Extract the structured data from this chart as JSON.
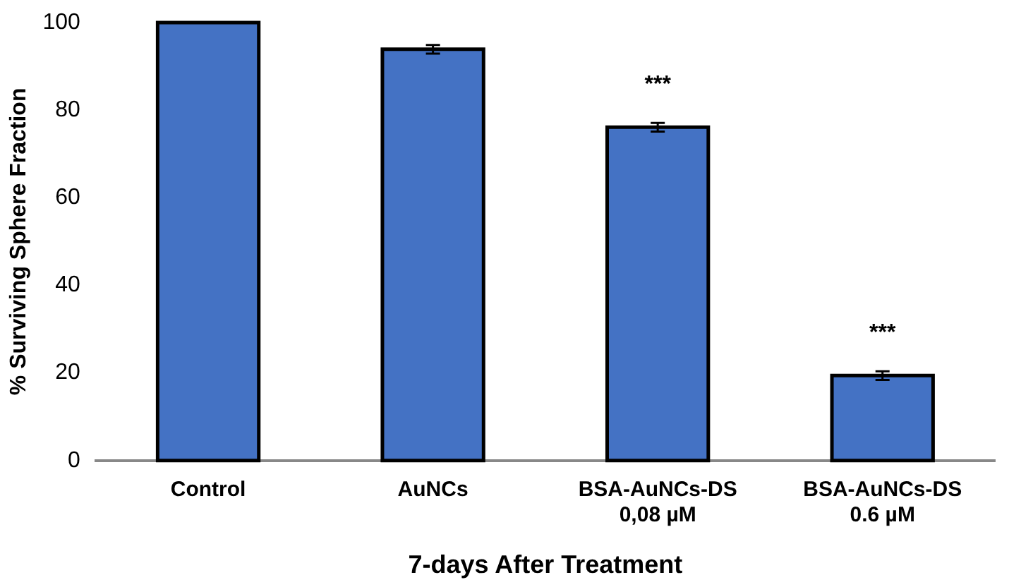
{
  "chart_data": {
    "type": "bar",
    "xlabel": "7-days After Treatment",
    "ylabel": "% Surviving Sphere Fraction",
    "categories": [
      "Control",
      "AuNCs",
      "BSA-AuNCs-DS\n0,08 µM",
      "BSA-AuNCs-DS\n0.6 µM"
    ],
    "values": [
      100,
      93.9,
      76.1,
      19.4
    ],
    "color": "#4472c4",
    "errors": [
      null,
      1,
      1,
      1
    ],
    "ylim": [
      0,
      100
    ],
    "yticks": [
      0,
      20,
      40,
      60,
      80,
      100
    ],
    "grid": false,
    "legend": false,
    "annotations": [
      {
        "text": "***",
        "x": "BSA-AuNCs-DS\n0,08 µM",
        "y": 76.1
      },
      {
        "text": "***",
        "x": "BSA-AuNCs-DS\n0.6 µM",
        "y": 19.4
      }
    ]
  }
}
